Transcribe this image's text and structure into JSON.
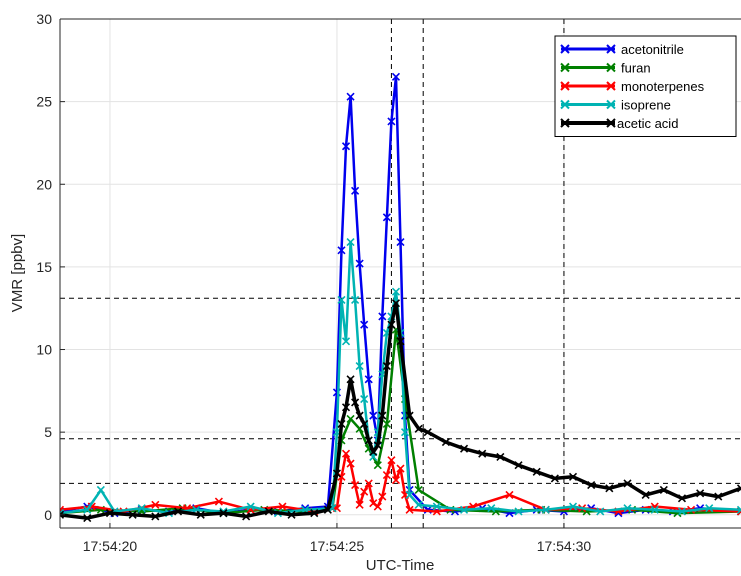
{
  "chart_data": {
    "type": "line",
    "xlabel": "UTC-Time",
    "ylabel": "VMR [ppbv]",
    "xlim": [
      "17:54:18.9",
      "17:54:33.9"
    ],
    "ylim": [
      -0.8,
      30
    ],
    "x_ticks": [
      "17:54:20",
      "17:54:25",
      "17:54:30"
    ],
    "y_ticks": [
      "0",
      "5",
      "10",
      "15",
      "20",
      "25",
      "30"
    ],
    "grid": true,
    "legend_position": "top-right",
    "reference_lines": {
      "vertical_times": [
        "17:54:26.2",
        "17:54:26.9",
        "17:54:30.0"
      ],
      "horizontal_values": [
        13.1,
        4.6,
        1.9
      ]
    },
    "series": [
      {
        "name": "acetonitrile",
        "color": "#0000ee",
        "x": [
          "17:54:18.9",
          "17:54:19.5",
          "17:54:20.1",
          "17:54:20.7",
          "17:54:21.3",
          "17:54:21.9",
          "17:54:22.5",
          "17:54:23.1",
          "17:54:23.7",
          "17:54:24.3",
          "17:54:24.8",
          "17:54:25.0",
          "17:54:25.1",
          "17:54:25.2",
          "17:54:25.3",
          "17:54:25.4",
          "17:54:25.5",
          "17:54:25.6",
          "17:54:25.7",
          "17:54:25.8",
          "17:54:25.9",
          "17:54:26.0",
          "17:54:26.1",
          "17:54:26.2",
          "17:54:26.3",
          "17:54:26.4",
          "17:54:26.5",
          "17:54:26.6",
          "17:54:27.0",
          "17:54:27.6",
          "17:54:28.2",
          "17:54:28.8",
          "17:54:29.4",
          "17:54:30.0",
          "17:54:30.6",
          "17:54:31.2",
          "17:54:31.8",
          "17:54:32.4",
          "17:54:33.0",
          "17:54:33.9"
        ],
        "values": [
          0.2,
          0.5,
          0.1,
          0.3,
          0.2,
          0.4,
          0.1,
          0.3,
          0.2,
          0.4,
          0.5,
          7.4,
          16.0,
          22.3,
          25.3,
          19.6,
          15.2,
          11.5,
          8.2,
          6.0,
          4.5,
          12.0,
          18.0,
          23.8,
          26.5,
          16.5,
          6.0,
          1.5,
          0.3,
          0.2,
          0.4,
          0.1,
          0.3,
          0.2,
          0.4,
          0.1,
          0.3,
          0.2,
          0.4,
          0.2
        ]
      },
      {
        "name": "furan",
        "color": "#008000",
        "x": [
          "17:54:18.9",
          "17:54:19.8",
          "17:54:20.7",
          "17:54:21.6",
          "17:54:22.5",
          "17:54:23.4",
          "17:54:24.3",
          "17:54:24.9",
          "17:54:25.1",
          "17:54:25.3",
          "17:54:25.5",
          "17:54:25.7",
          "17:54:25.9",
          "17:54:26.1",
          "17:54:26.3",
          "17:54:26.5",
          "17:54:26.8",
          "17:54:27.5",
          "17:54:28.5",
          "17:54:29.5",
          "17:54:30.5",
          "17:54:31.5",
          "17:54:32.5",
          "17:54:33.9"
        ],
        "values": [
          0.1,
          0.3,
          0.2,
          0.4,
          0.1,
          0.3,
          0.2,
          0.4,
          4.5,
          5.8,
          5.2,
          4.0,
          3.0,
          5.5,
          11.2,
          7.0,
          1.5,
          0.3,
          0.2,
          0.3,
          0.2,
          0.3,
          0.1,
          0.2
        ]
      },
      {
        "name": "monoterpenes",
        "color": "#ff0000",
        "x": [
          "17:54:18.9",
          "17:54:19.6",
          "17:54:20.3",
          "17:54:21.0",
          "17:54:21.7",
          "17:54:22.4",
          "17:54:23.1",
          "17:54:23.8",
          "17:54:24.5",
          "17:54:25.0",
          "17:54:25.1",
          "17:54:25.2",
          "17:54:25.3",
          "17:54:25.4",
          "17:54:25.5",
          "17:54:25.6",
          "17:54:25.7",
          "17:54:25.8",
          "17:54:25.9",
          "17:54:26.0",
          "17:54:26.1",
          "17:54:26.2",
          "17:54:26.3",
          "17:54:26.4",
          "17:54:26.5",
          "17:54:26.6",
          "17:54:27.2",
          "17:54:28.0",
          "17:54:28.8",
          "17:54:29.6",
          "17:54:30.4",
          "17:54:31.2",
          "17:54:32.0",
          "17:54:32.8",
          "17:54:33.9"
        ],
        "values": [
          0.3,
          0.5,
          0.2,
          0.6,
          0.4,
          0.8,
          0.3,
          0.5,
          0.2,
          0.4,
          2.3,
          3.7,
          3.1,
          1.8,
          0.6,
          1.4,
          1.9,
          0.7,
          0.5,
          1.1,
          2.4,
          3.3,
          2.1,
          2.8,
          1.2,
          0.3,
          0.2,
          0.5,
          1.2,
          0.3,
          0.4,
          0.2,
          0.5,
          0.3,
          0.2
        ]
      },
      {
        "name": "isoprene",
        "color": "#00b3b3",
        "x": [
          "17:54:18.9",
          "17:54:19.5",
          "17:54:19.8",
          "17:54:20.1",
          "17:54:20.7",
          "17:54:21.3",
          "17:54:21.9",
          "17:54:22.5",
          "17:54:23.1",
          "17:54:23.7",
          "17:54:24.3",
          "17:54:24.9",
          "17:54:25.0",
          "17:54:25.1",
          "17:54:25.2",
          "17:54:25.3",
          "17:54:25.4",
          "17:54:25.5",
          "17:54:25.6",
          "17:54:25.7",
          "17:54:25.8",
          "17:54:25.9",
          "17:54:26.0",
          "17:54:26.1",
          "17:54:26.2",
          "17:54:26.3",
          "17:54:26.4",
          "17:54:26.5",
          "17:54:26.6",
          "17:54:26.8",
          "17:54:27.2",
          "17:54:27.8",
          "17:54:28.4",
          "17:54:29.0",
          "17:54:29.6",
          "17:54:30.2",
          "17:54:30.8",
          "17:54:31.4",
          "17:54:32.0",
          "17:54:32.6",
          "17:54:33.2",
          "17:54:33.9"
        ],
        "values": [
          0.1,
          0.3,
          1.5,
          0.2,
          0.4,
          0.1,
          0.3,
          0.2,
          0.5,
          0.1,
          0.3,
          0.4,
          5.0,
          13.0,
          10.5,
          16.5,
          13.0,
          9.0,
          7.0,
          4.5,
          3.5,
          5.0,
          8.5,
          11.0,
          12.0,
          13.5,
          11.0,
          5.0,
          1.2,
          0.6,
          0.5,
          0.3,
          0.4,
          0.2,
          0.3,
          0.5,
          0.2,
          0.4,
          0.3,
          0.2,
          0.4,
          0.3
        ]
      },
      {
        "name": "acetic acid",
        "color": "#000000",
        "x": [
          "17:54:18.9",
          "17:54:19.5",
          "17:54:20.0",
          "17:54:20.5",
          "17:54:21.0",
          "17:54:21.5",
          "17:54:22.0",
          "17:54:22.5",
          "17:54:23.0",
          "17:54:23.5",
          "17:54:24.0",
          "17:54:24.5",
          "17:54:24.8",
          "17:54:25.0",
          "17:54:25.1",
          "17:54:25.2",
          "17:54:25.3",
          "17:54:25.4",
          "17:54:25.5",
          "17:54:25.6",
          "17:54:25.7",
          "17:54:25.8",
          "17:54:25.9",
          "17:54:26.0",
          "17:54:26.1",
          "17:54:26.2",
          "17:54:26.3",
          "17:54:26.4",
          "17:54:26.6",
          "17:54:26.8",
          "17:54:27.0",
          "17:54:27.4",
          "17:54:27.8",
          "17:54:28.2",
          "17:54:28.6",
          "17:54:29.0",
          "17:54:29.4",
          "17:54:29.8",
          "17:54:30.2",
          "17:54:30.6",
          "17:54:31.0",
          "17:54:31.4",
          "17:54:31.8",
          "17:54:32.2",
          "17:54:32.6",
          "17:54:33.0",
          "17:54:33.4",
          "17:54:33.9"
        ],
        "values": [
          0.0,
          -0.2,
          0.1,
          0.0,
          -0.1,
          0.2,
          0.0,
          0.1,
          -0.1,
          0.2,
          0.0,
          0.1,
          0.3,
          2.5,
          5.5,
          6.5,
          8.2,
          6.8,
          6.0,
          5.5,
          4.5,
          3.8,
          4.2,
          6.0,
          9.0,
          11.5,
          12.8,
          10.5,
          6.0,
          5.2,
          5.0,
          4.4,
          4.0,
          3.7,
          3.5,
          3.0,
          2.6,
          2.2,
          2.3,
          1.8,
          1.6,
          1.9,
          1.2,
          1.5,
          1.0,
          1.3,
          1.1,
          1.6
        ]
      }
    ]
  }
}
